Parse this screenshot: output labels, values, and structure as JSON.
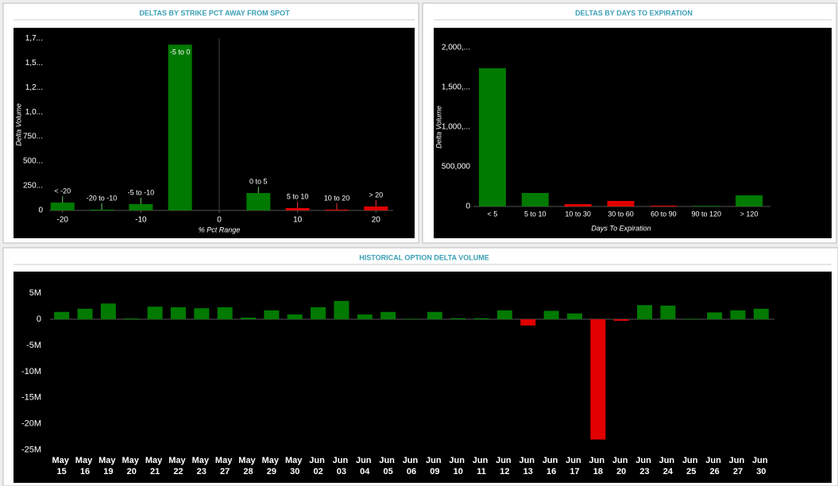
{
  "chart_data": [
    {
      "type": "bar",
      "title": "DELTAS BY STRIKE PCT AWAY FROM SPOT",
      "xlabel": "% Pct Range",
      "ylabel": "Delta Volume",
      "categories": [
        "< -20",
        "-20 to -10",
        "-5 to -10",
        "-5 to 0",
        "0 to 5",
        "5 to 10",
        "10 to 20",
        "> 20"
      ],
      "x": [
        -20,
        -15,
        -10,
        -5,
        5,
        10,
        15,
        20
      ],
      "values": [
        80000,
        8000,
        65000,
        1685000,
        177000,
        24000,
        8000,
        40000
      ],
      "colors": [
        "#007a00",
        "#007a00",
        "#007a00",
        "#007a00",
        "#007a00",
        "#e00000",
        "#e00000",
        "#e00000"
      ],
      "label_colors": [
        "#66cc66",
        "#66cc66",
        "#66cc66",
        "#000000",
        "#66cc66",
        "#ff3333",
        "#ff3333",
        "#ff3333"
      ],
      "xlim": [
        -22,
        22
      ],
      "xticks": [
        -20,
        -10,
        0,
        10,
        20
      ],
      "ylim": [
        0,
        1800000
      ],
      "yticks": [
        0,
        {
          "value": 250000,
          "label": "250..."
        },
        {
          "value": 500000,
          "label": "500..."
        },
        {
          "value": 750000,
          "label": "750..."
        },
        {
          "value": 1000000,
          "label": "1,0..."
        },
        {
          "value": 1250000,
          "label": "1,2..."
        },
        {
          "value": 1500000,
          "label": "1,5..."
        },
        {
          "value": 1750000,
          "label": "1,7..."
        }
      ]
    },
    {
      "type": "bar",
      "title": "DELTAS BY DAYS TO EXPIRATION",
      "xlabel": "Days To Expiration",
      "ylabel": "Delta Volume",
      "categories": [
        "< 5",
        "5 to 10",
        "10 to 30",
        "30 to 60",
        "60 to 90",
        "90 to 120",
        "> 120"
      ],
      "values": [
        1740000,
        170000,
        30000,
        70000,
        10000,
        8000,
        140000
      ],
      "colors": [
        "#007a00",
        "#007a00",
        "#e00000",
        "#e00000",
        "#e00000",
        "#007a00",
        "#007a00"
      ],
      "ylim": [
        0,
        2150000
      ],
      "yticks": [
        0,
        {
          "value": 500000,
          "label": "500,000"
        },
        {
          "value": 1000000,
          "label": "1,000,..."
        },
        {
          "value": 1500000,
          "label": "1,500,..."
        },
        {
          "value": 2000000,
          "label": "2,000,..."
        }
      ]
    },
    {
      "type": "bar",
      "title": "HISTORICAL OPTION DELTA VOLUME",
      "categories": [
        "May 15",
        "May 16",
        "May 19",
        "May 20",
        "May 21",
        "May 22",
        "May 23",
        "May 27",
        "May 28",
        "May 29",
        "May 30",
        "Jun 02",
        "Jun 03",
        "Jun 04",
        "Jun 05",
        "Jun 06",
        "Jun 09",
        "Jun 10",
        "Jun 11",
        "Jun 12",
        "Jun 13",
        "Jun 16",
        "Jun 17",
        "Jun 18",
        "Jun 20",
        "Jun 23",
        "Jun 24",
        "Jun 25",
        "Jun 26",
        "Jun 27",
        "Jun 30"
      ],
      "values": [
        1400000,
        2000000,
        3000000,
        150000,
        2400000,
        2300000,
        2100000,
        2300000,
        300000,
        1700000,
        900000,
        2300000,
        3500000,
        900000,
        1400000,
        100000,
        1400000,
        200000,
        200000,
        1700000,
        -1200000,
        1600000,
        1100000,
        -23000000,
        -300000,
        2700000,
        2600000,
        100000,
        1300000,
        1700000,
        2000000
      ],
      "positive_color": "#007a00",
      "negative_color": "#e00000",
      "ylim": [
        -25500000,
        8500000
      ],
      "yticks": [
        {
          "value": 5000000,
          "label": "5M"
        },
        0,
        {
          "value": -5000000,
          "label": "-5M"
        },
        {
          "value": -10000000,
          "label": "-10M"
        },
        {
          "value": -15000000,
          "label": "-15M"
        },
        {
          "value": -20000000,
          "label": "-20M"
        },
        {
          "value": -25000000,
          "label": "-25M"
        }
      ]
    }
  ]
}
